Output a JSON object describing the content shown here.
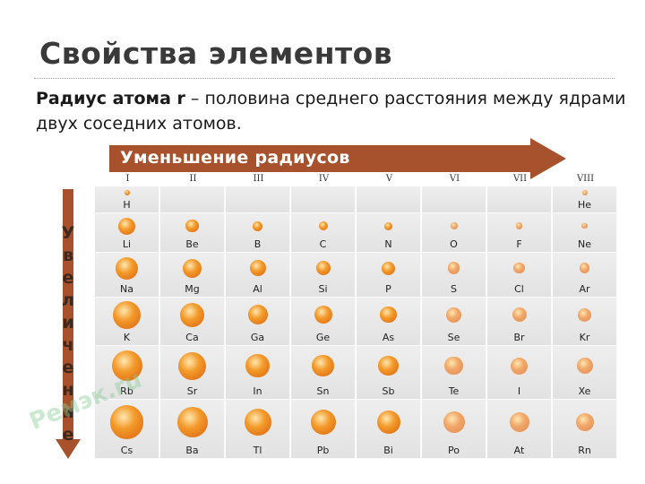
{
  "page": {
    "title": "Свойства элементов",
    "definition": {
      "term": "Радиус атома r",
      "text": " – половина среднего расстояния между ядрами двух соседних атомов."
    }
  },
  "figure": {
    "top_arrow_label": "Уменьшение радиусов",
    "left_arrow_letters": [
      "У",
      "в",
      "е",
      "л",
      "и",
      "ч",
      "е",
      "н",
      "и",
      "е"
    ],
    "watermark": "Ремэк.ru",
    "groups": [
      "I",
      "II",
      "III",
      "IV",
      "V",
      "VI",
      "VII",
      "VIII"
    ],
    "colors": {
      "arrow": "#a8522d",
      "atom_dark": "#d9620f",
      "atom_light": "#f1a86a"
    },
    "rows": [
      [
        {
          "sym": "H",
          "r": 0.12
        },
        null,
        null,
        null,
        null,
        null,
        null,
        {
          "sym": "He",
          "r": 0.07
        }
      ],
      [
        {
          "sym": "Li",
          "r": 0.38
        },
        {
          "sym": "Be",
          "r": 0.29
        },
        {
          "sym": "B",
          "r": 0.22
        },
        {
          "sym": "C",
          "r": 0.2
        },
        {
          "sym": "N",
          "r": 0.18
        },
        {
          "sym": "O",
          "r": 0.16
        },
        {
          "sym": "F",
          "r": 0.15
        },
        {
          "sym": "Ne",
          "r": 0.13
        }
      ],
      [
        {
          "sym": "Na",
          "r": 0.5
        },
        {
          "sym": "Mg",
          "r": 0.42
        },
        {
          "sym": "Al",
          "r": 0.36
        },
        {
          "sym": "Si",
          "r": 0.32
        },
        {
          "sym": "P",
          "r": 0.3
        },
        {
          "sym": "S",
          "r": 0.27
        },
        {
          "sym": "Cl",
          "r": 0.25
        },
        {
          "sym": "Ar",
          "r": 0.23
        }
      ],
      [
        {
          "sym": "K",
          "r": 0.62
        },
        {
          "sym": "Ca",
          "r": 0.54
        },
        {
          "sym": "Ga",
          "r": 0.44
        },
        {
          "sym": "Ge",
          "r": 0.4
        },
        {
          "sym": "As",
          "r": 0.37
        },
        {
          "sym": "Se",
          "r": 0.34
        },
        {
          "sym": "Br",
          "r": 0.32
        },
        {
          "sym": "Kr",
          "r": 0.3
        }
      ],
      [
        {
          "sym": "Rb",
          "r": 0.68
        },
        {
          "sym": "Sr",
          "r": 0.62
        },
        {
          "sym": "In",
          "r": 0.53
        },
        {
          "sym": "Sn",
          "r": 0.49
        },
        {
          "sym": "Sb",
          "r": 0.45
        },
        {
          "sym": "Te",
          "r": 0.41
        },
        {
          "sym": "I",
          "r": 0.38
        },
        {
          "sym": "Xe",
          "r": 0.36
        }
      ],
      [
        {
          "sym": "Cs",
          "r": 0.75
        },
        {
          "sym": "Ba",
          "r": 0.68
        },
        {
          "sym": "Tl",
          "r": 0.6
        },
        {
          "sym": "Pb",
          "r": 0.56
        },
        {
          "sym": "Bi",
          "r": 0.52
        },
        {
          "sym": "Po",
          "r": 0.48
        },
        {
          "sym": "At",
          "r": 0.44
        },
        {
          "sym": "Rn",
          "r": 0.4
        }
      ]
    ]
  }
}
